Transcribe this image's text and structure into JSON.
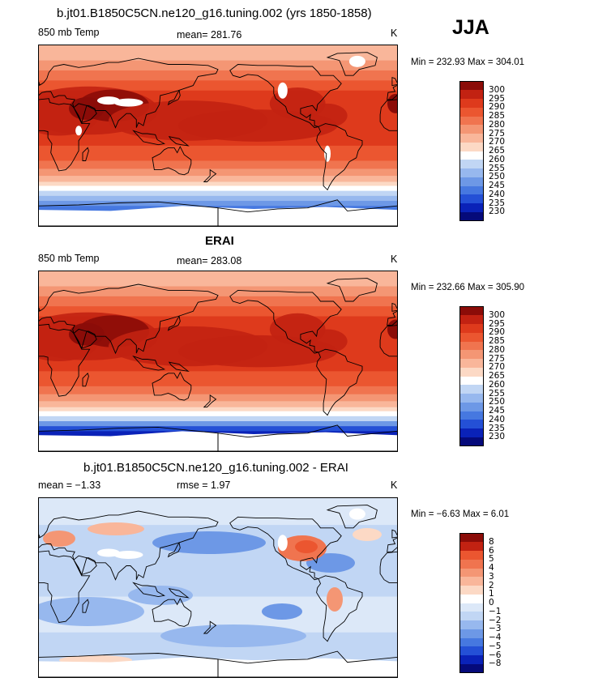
{
  "season": "JJA",
  "colors": {
    "abs_scale": [
      "#050a7a",
      "#0a22b8",
      "#2450d6",
      "#4678e0",
      "#6d98e6",
      "#97b8ee",
      "#c1d6f4",
      "#ffffff",
      "#fcd9c5",
      "#f9b69a",
      "#f49674",
      "#f0744f",
      "#eb5630",
      "#de3a1c",
      "#c22212",
      "#8b0c08"
    ],
    "diff_scale": [
      "#050a7a",
      "#0a22b8",
      "#2450d6",
      "#4678e0",
      "#6d98e6",
      "#97b8ee",
      "#c1d6f4",
      "#dce8f8",
      "#ffffff",
      "#fcd9c5",
      "#f9b69a",
      "#f49674",
      "#f0744f",
      "#eb5630",
      "#c22212",
      "#8b0c08"
    ],
    "land": "#ffffff"
  },
  "panels": [
    {
      "title": "b.jt01.B1850C5CN.ne120_g16.tuning.002 (yrs 1850-1858)",
      "left_label": "850 mb Temp",
      "center_label": "mean=  281.76",
      "units": "K",
      "minmax": "Min = 232.93 Max = 304.01"
    },
    {
      "title": "ERAI",
      "left_label": "850 mb Temp",
      "center_label": "mean=  283.08",
      "units": "K",
      "minmax": "Min = 232.66 Max = 305.90"
    },
    {
      "title": "b.jt01.B1850C5CN.ne120_g16.tuning.002 - ERAI",
      "left_label": "mean =   −1.33",
      "center_label": "rmse =    1.97",
      "units": "K",
      "minmax": "Min =   −6.63 Max =    6.01"
    }
  ],
  "chart_data": [
    {
      "type": "heatmap",
      "title": "b.jt01.B1850C5CN.ne120_g16.tuning.002 (yrs 1850-1858)",
      "variable": "850 mb Temp",
      "units": "K",
      "mean": 281.76,
      "min": 232.93,
      "max": 304.01,
      "colorbar_labels": [
        "230",
        "235",
        "240",
        "245",
        "250",
        "255",
        "260",
        "265",
        "270",
        "275",
        "280",
        "285",
        "290",
        "295",
        "300"
      ]
    },
    {
      "type": "heatmap",
      "title": "ERAI",
      "variable": "850 mb Temp",
      "units": "K",
      "mean": 283.08,
      "min": 232.66,
      "max": 305.9,
      "colorbar_labels": [
        "230",
        "235",
        "240",
        "245",
        "250",
        "255",
        "260",
        "265",
        "270",
        "275",
        "280",
        "285",
        "290",
        "295",
        "300"
      ]
    },
    {
      "type": "heatmap",
      "title": "b.jt01.B1850C5CN.ne120_g16.tuning.002 - ERAI",
      "units": "K",
      "mean": -1.33,
      "rmse": 1.97,
      "min": -6.63,
      "max": 6.01,
      "colorbar_labels": [
        "−8",
        "−6",
        "−5",
        "−4",
        "−3",
        "−2",
        "−1",
        "0",
        "1",
        "2",
        "3",
        "4",
        "5",
        "6",
        "8"
      ]
    }
  ]
}
